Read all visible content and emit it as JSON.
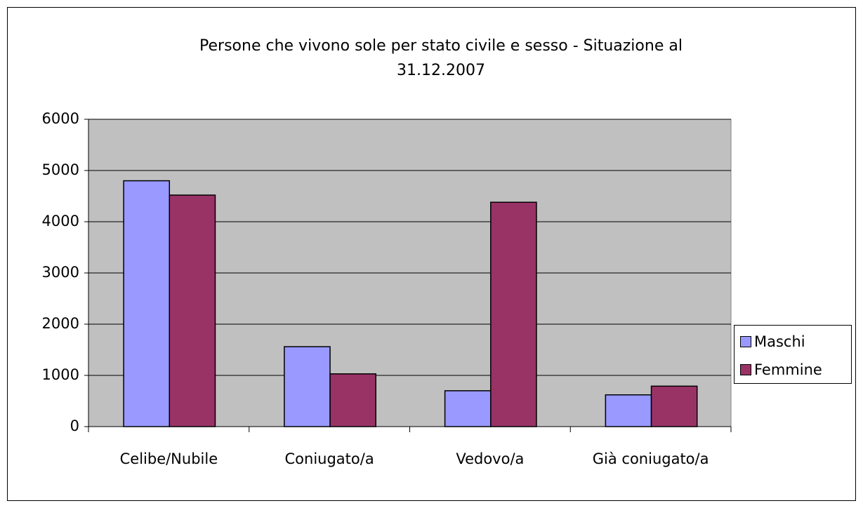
{
  "chart_data": {
    "type": "bar",
    "title": "Persone che vivono sole per stato civile e sesso - Situazione al 31.12.2007",
    "categories": [
      "Celibe/Nubile",
      "Coniugato/a",
      "Vedovo/a",
      "Già coniugato/a"
    ],
    "series": [
      {
        "name": "Maschi",
        "color": "#9999ff",
        "values": [
          4800,
          1560,
          700,
          620
        ]
      },
      {
        "name": "Femmine",
        "color": "#993366",
        "values": [
          4520,
          1030,
          4380,
          790
        ]
      }
    ],
    "ylim": [
      0,
      6000
    ],
    "yticks": [
      0,
      1000,
      2000,
      3000,
      4000,
      5000,
      6000
    ],
    "grid": true,
    "plot_background": "#c0c0c0",
    "legend": "right"
  }
}
